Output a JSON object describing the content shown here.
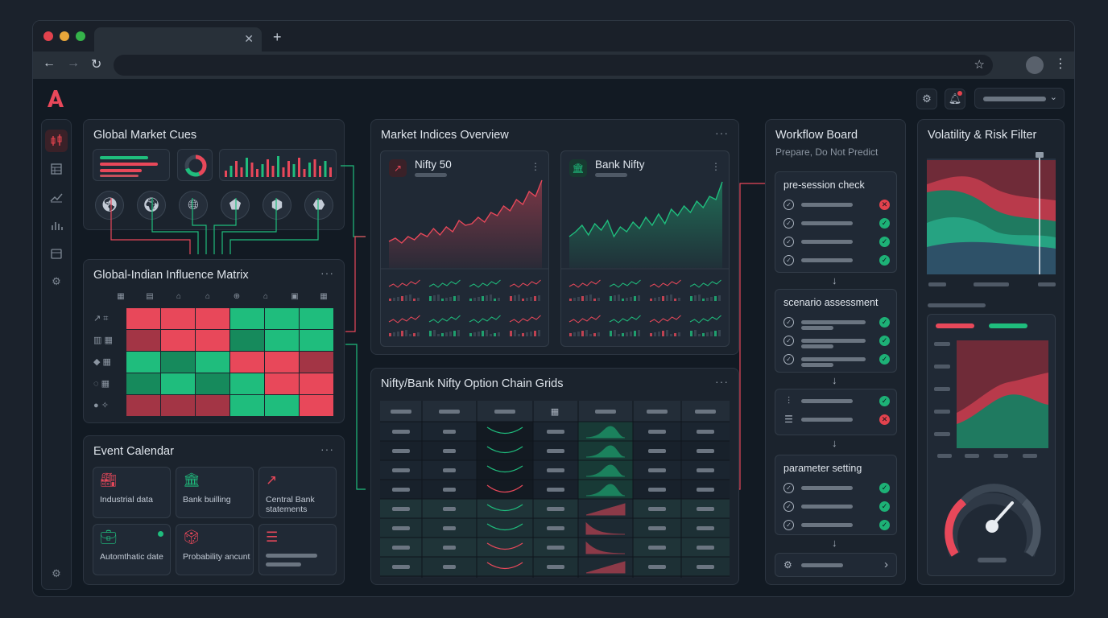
{
  "browser": {
    "tab_close": "✕",
    "new_tab": "+",
    "back": "←",
    "forward": "→",
    "reload": "↻",
    "bookmark": "☆",
    "menu": "⋮"
  },
  "header": {
    "logo": "A",
    "settings_icon": "gear-icon",
    "notification_icon": "bell-icon",
    "dropdown_chevron": "⌄"
  },
  "sidebar": {
    "items": [
      "candlestick-icon",
      "table-icon",
      "line-chart-icon",
      "bar-chart-icon",
      "calendar-icon",
      "settings-icon"
    ],
    "bottom": "settings-icon"
  },
  "global_cues": {
    "title": "Global Market Cues",
    "markets": [
      "americas-globe-icon",
      "europe-globe-icon",
      "world-grid-icon",
      "india-map-icon",
      "uk-map-icon",
      "africa-map-icon"
    ]
  },
  "matrix": {
    "title": "Global-Indian Influence Matrix",
    "more": "···",
    "cells": [
      [
        "r",
        "r",
        "r",
        "g",
        "g",
        "g"
      ],
      [
        "dr",
        "r",
        "r",
        "dg",
        "g",
        "g"
      ],
      [
        "g",
        "dg",
        "g",
        "r",
        "r",
        "dr"
      ],
      [
        "dg",
        "g",
        "dg",
        "g",
        "r",
        "r"
      ],
      [
        "dr",
        "dr",
        "dr",
        "g",
        "g",
        "r"
      ]
    ],
    "colors": {
      "r": "#e8485a",
      "dr": "#a33545",
      "g": "#1fbd7d",
      "dg": "#168a5c"
    }
  },
  "event_calendar": {
    "title": "Event Calendar",
    "more": "···",
    "events": [
      {
        "label": "Industrial data",
        "icon": "factory-icon"
      },
      {
        "label": "Bank builling",
        "icon": "bank-icon"
      },
      {
        "label": "Central Bank statements",
        "icon": "trend-line-icon"
      },
      {
        "label": "Automthatic date",
        "icon": "briefcase-icon"
      },
      {
        "label": "Probability ancunt",
        "icon": "dice-icon"
      },
      {
        "label": "",
        "icon": "list-icon"
      }
    ]
  },
  "market_indices": {
    "title": "Market Indices Overview",
    "more": "···",
    "indices": [
      {
        "name": "Nifty 50",
        "color": "#e8485a",
        "more": "⋮"
      },
      {
        "name": "Bank Nifty",
        "color": "#1fbd7d",
        "more": "⋮"
      }
    ]
  },
  "option_chain": {
    "title": "Nifty/Bank Nifty Option Chain Grids",
    "more": "···"
  },
  "workflow": {
    "title": "Workflow Board",
    "subtitle": "Prepare, Do Not Predict",
    "cards": [
      {
        "title": "pre-session check",
        "status": [
          "bad",
          "ok",
          "ok",
          "ok"
        ]
      },
      {
        "title": "scenario assessment",
        "status": [
          "ok",
          "ok",
          "ok"
        ]
      },
      {
        "title": "",
        "status": [
          "ok",
          "bad"
        ]
      },
      {
        "title": "parameter setting",
        "status": [
          "ok",
          "ok",
          "ok"
        ]
      }
    ],
    "arrow": "↓",
    "footer_chevron": "›"
  },
  "volatility": {
    "title": "Volatility & Risk Filter"
  }
}
